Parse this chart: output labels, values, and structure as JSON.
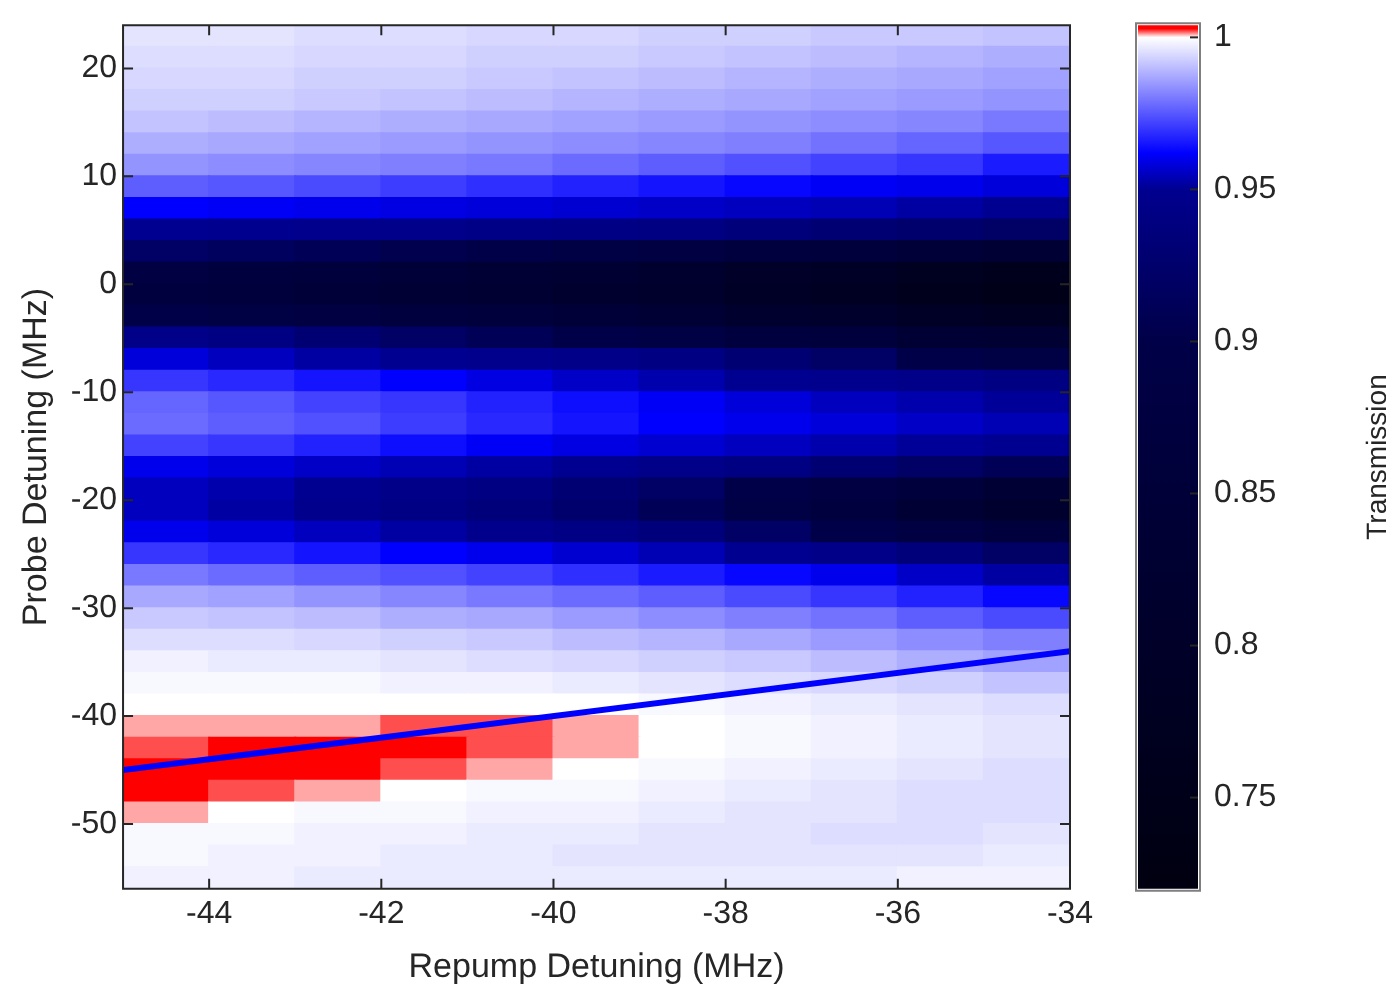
{
  "chart_data": {
    "type": "heatmap",
    "xlabel": "Repump Detuning (MHz)",
    "ylabel": "Probe Detuning (MHz)",
    "clabel": "Transmission",
    "x": [
      -44.5,
      -43.5,
      -42.5,
      -41.5,
      -40.5,
      -39.5,
      -38.5,
      -37.5,
      -36.5,
      -35.5,
      -34.5
    ],
    "y": [
      23,
      21,
      19,
      17,
      15,
      13,
      11,
      9,
      7,
      5,
      3,
      1,
      -1,
      -3,
      -5,
      -7,
      -9,
      -11,
      -13,
      -15,
      -17,
      -19,
      -21,
      -23,
      -25,
      -27,
      -29,
      -31,
      -33,
      -35,
      -37,
      -39,
      -41,
      -43,
      -45,
      -47,
      -49,
      -51,
      -53,
      -55
    ],
    "cells": [
      [
        0.996,
        0.996,
        0.995,
        0.995,
        0.994,
        0.994,
        0.993,
        0.993,
        0.992,
        0.992,
        0.991
      ],
      [
        0.995,
        0.995,
        0.994,
        0.994,
        0.993,
        0.993,
        0.992,
        0.991,
        0.99,
        0.989,
        0.988
      ],
      [
        0.994,
        0.994,
        0.993,
        0.993,
        0.992,
        0.991,
        0.99,
        0.989,
        0.988,
        0.987,
        0.986
      ],
      [
        0.993,
        0.993,
        0.992,
        0.991,
        0.99,
        0.989,
        0.988,
        0.987,
        0.986,
        0.985,
        0.984
      ],
      [
        0.991,
        0.99,
        0.989,
        0.988,
        0.987,
        0.986,
        0.985,
        0.984,
        0.983,
        0.982,
        0.98
      ],
      [
        0.988,
        0.987,
        0.986,
        0.985,
        0.984,
        0.983,
        0.982,
        0.981,
        0.979,
        0.977,
        0.975
      ],
      [
        0.984,
        0.983,
        0.982,
        0.981,
        0.98,
        0.978,
        0.976,
        0.974,
        0.972,
        0.97,
        0.966
      ],
      [
        0.976,
        0.975,
        0.973,
        0.971,
        0.969,
        0.967,
        0.965,
        0.963,
        0.961,
        0.96,
        0.958
      ],
      [
        0.962,
        0.961,
        0.96,
        0.959,
        0.958,
        0.957,
        0.956,
        0.955,
        0.954,
        0.952,
        0.95
      ],
      [
        0.95,
        0.949,
        0.948,
        0.946,
        0.944,
        0.942,
        0.94,
        0.935,
        0.93,
        0.925,
        0.92
      ],
      [
        0.92,
        0.915,
        0.91,
        0.905,
        0.9,
        0.89,
        0.88,
        0.87,
        0.86,
        0.85,
        0.84
      ],
      [
        0.88,
        0.87,
        0.86,
        0.85,
        0.84,
        0.83,
        0.82,
        0.8,
        0.79,
        0.77,
        0.76
      ],
      [
        0.87,
        0.86,
        0.85,
        0.84,
        0.83,
        0.82,
        0.81,
        0.79,
        0.78,
        0.76,
        0.75
      ],
      [
        0.9,
        0.89,
        0.88,
        0.87,
        0.86,
        0.85,
        0.84,
        0.82,
        0.81,
        0.79,
        0.78
      ],
      [
        0.945,
        0.94,
        0.93,
        0.92,
        0.91,
        0.9,
        0.89,
        0.87,
        0.86,
        0.84,
        0.83
      ],
      [
        0.958,
        0.955,
        0.952,
        0.95,
        0.948,
        0.945,
        0.94,
        0.93,
        0.92,
        0.9,
        0.89
      ],
      [
        0.97,
        0.968,
        0.965,
        0.962,
        0.959,
        0.956,
        0.953,
        0.95,
        0.948,
        0.945,
        0.94
      ],
      [
        0.977,
        0.975,
        0.972,
        0.97,
        0.967,
        0.964,
        0.961,
        0.958,
        0.955,
        0.953,
        0.951
      ],
      [
        0.978,
        0.976,
        0.974,
        0.971,
        0.968,
        0.965,
        0.962,
        0.96,
        0.958,
        0.956,
        0.954
      ],
      [
        0.972,
        0.97,
        0.967,
        0.964,
        0.961,
        0.959,
        0.957,
        0.955,
        0.953,
        0.951,
        0.95
      ],
      [
        0.96,
        0.958,
        0.956,
        0.954,
        0.952,
        0.95,
        0.945,
        0.94,
        0.93,
        0.92,
        0.91
      ],
      [
        0.955,
        0.953,
        0.95,
        0.945,
        0.94,
        0.93,
        0.92,
        0.9,
        0.88,
        0.86,
        0.84
      ],
      [
        0.955,
        0.952,
        0.948,
        0.942,
        0.935,
        0.925,
        0.91,
        0.89,
        0.87,
        0.84,
        0.82
      ],
      [
        0.96,
        0.958,
        0.955,
        0.952,
        0.948,
        0.942,
        0.935,
        0.92,
        0.9,
        0.88,
        0.86
      ],
      [
        0.97,
        0.968,
        0.965,
        0.962,
        0.96,
        0.957,
        0.954,
        0.95,
        0.945,
        0.935,
        0.92
      ],
      [
        0.98,
        0.978,
        0.976,
        0.974,
        0.972,
        0.969,
        0.966,
        0.963,
        0.96,
        0.956,
        0.952
      ],
      [
        0.987,
        0.986,
        0.984,
        0.982,
        0.98,
        0.978,
        0.976,
        0.973,
        0.97,
        0.967,
        0.963
      ],
      [
        0.992,
        0.991,
        0.99,
        0.988,
        0.987,
        0.985,
        0.983,
        0.981,
        0.979,
        0.976,
        0.973
      ],
      [
        0.995,
        0.995,
        0.994,
        0.993,
        0.992,
        0.99,
        0.989,
        0.987,
        0.985,
        0.983,
        0.981
      ],
      [
        0.998,
        0.997,
        0.997,
        0.996,
        0.995,
        0.994,
        0.993,
        0.992,
        0.99,
        0.988,
        0.986
      ],
      [
        0.999,
        0.999,
        0.999,
        0.998,
        0.998,
        0.997,
        0.996,
        0.995,
        0.994,
        0.993,
        0.991
      ],
      [
        1.0,
        1.0,
        1.0,
        1.0,
        1.0,
        1.0,
        0.999,
        0.998,
        0.997,
        0.996,
        0.995
      ],
      [
        1.001,
        1.001,
        1.001,
        1.002,
        1.002,
        1.001,
        1.0,
        0.999,
        0.998,
        0.997,
        0.996
      ],
      [
        1.002,
        1.003,
        1.003,
        1.003,
        1.002,
        1.001,
        1.0,
        0.999,
        0.998,
        0.997,
        0.996
      ],
      [
        1.004,
        1.004,
        1.003,
        1.002,
        1.001,
        1.0,
        0.999,
        0.998,
        0.997,
        0.996,
        0.995
      ],
      [
        1.003,
        1.002,
        1.001,
        1.0,
        0.999,
        0.999,
        0.998,
        0.997,
        0.996,
        0.995,
        0.995
      ],
      [
        1.001,
        1.0,
        0.999,
        0.999,
        0.998,
        0.998,
        0.997,
        0.996,
        0.996,
        0.995,
        0.995
      ],
      [
        0.999,
        0.999,
        0.998,
        0.998,
        0.997,
        0.997,
        0.996,
        0.996,
        0.995,
        0.995,
        0.996
      ],
      [
        0.999,
        0.998,
        0.998,
        0.997,
        0.997,
        0.996,
        0.996,
        0.996,
        0.996,
        0.996,
        0.997
      ],
      [
        0.998,
        0.998,
        0.997,
        0.997,
        0.997,
        0.997,
        0.997,
        0.997,
        0.997,
        0.998,
        0.998
      ]
    ],
    "xlim": [
      -45,
      -34
    ],
    "xticks": [
      -44,
      -42,
      -40,
      -38,
      -36,
      -34
    ],
    "ylim": [
      -56,
      24
    ],
    "yticks": [
      -50,
      -40,
      -30,
      -20,
      -10,
      0,
      10,
      20
    ],
    "clim": [
      0.72,
      1.004
    ],
    "cticks": [
      0.75,
      0.8,
      0.85,
      0.9,
      0.95,
      1
    ],
    "series": [
      {
        "type": "line",
        "x": [
          -45,
          -34
        ],
        "values": [
          -45,
          -34
        ],
        "color": "#0000ff"
      }
    ]
  }
}
